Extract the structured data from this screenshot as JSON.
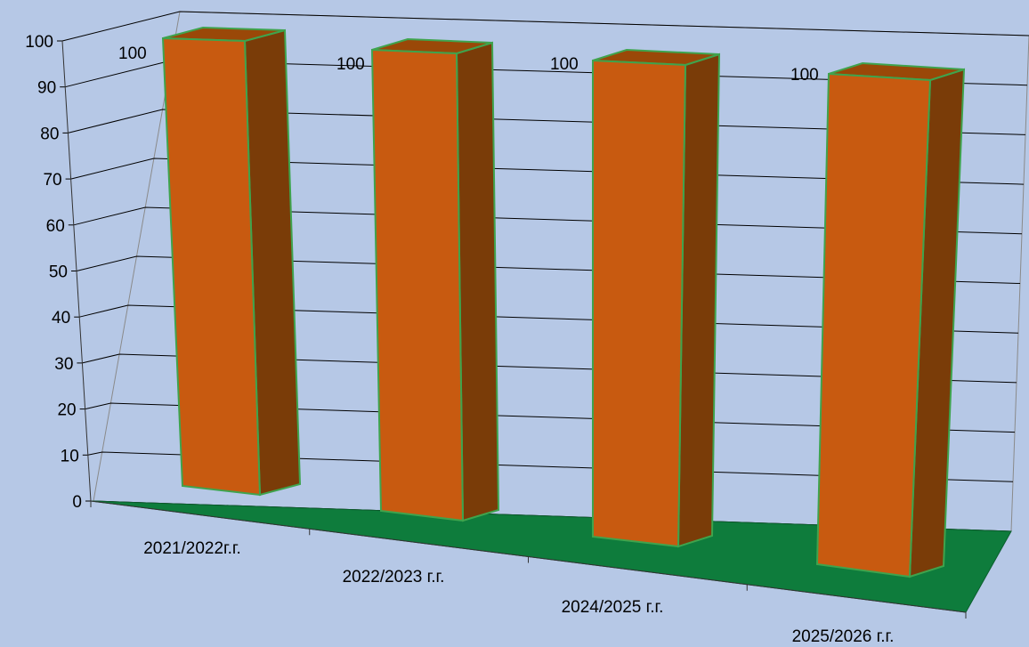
{
  "chart_data": {
    "type": "bar",
    "style": "3d-column",
    "categories": [
      "2021/2022г.г.",
      "2022/2023 г.г.",
      "2024/2025 г.г.",
      "2025/2026 г.г."
    ],
    "values": [
      100,
      100,
      100,
      100
    ],
    "data_labels": [
      "100",
      "100",
      "100",
      "100"
    ],
    "ylim": [
      0,
      100
    ],
    "yticks": [
      "0",
      "10",
      "20",
      "30",
      "40",
      "50",
      "60",
      "70",
      "80",
      "90",
      "100"
    ],
    "grid": true,
    "title": "",
    "xlabel": "",
    "ylabel": "",
    "colors": {
      "background": "#b6c8e6",
      "bar_front": "#c85a10",
      "bar_side": "#7a3c08",
      "bar_top": "#9a4808",
      "bar_edge": "#3fa34d",
      "floor": "#0e7c3c",
      "gridline": "#000000"
    }
  }
}
